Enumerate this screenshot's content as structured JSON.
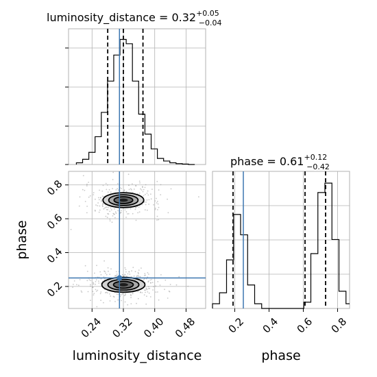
{
  "chart_data": {
    "type": "corner",
    "truth": {
      "luminosity_distance": 0.31,
      "phase": 0.25,
      "color": "#3b76b0"
    },
    "panels": {
      "luminosity_distance_hist": {
        "type": "histogram",
        "title": {
          "prefix": "luminosity_distance = 0.32",
          "upper": "+0.05",
          "lower": "−0.04"
        },
        "xlim": [
          0.18,
          0.53
        ],
        "bin_edges": [
          0.2,
          0.2159,
          0.2318,
          0.2477,
          0.2636,
          0.2795,
          0.2954,
          0.3113,
          0.3272,
          0.3431,
          0.359,
          0.375,
          0.3909,
          0.4068,
          0.4227,
          0.4386,
          0.4545,
          0.4704,
          0.4863,
          0.5022
        ],
        "counts": [
          2,
          6,
          14,
          32,
          60,
          96,
          126,
          144,
          139,
          96,
          58,
          35,
          18,
          7,
          4,
          2,
          1,
          0.5,
          0
        ],
        "quantiles": [
          0.28,
          0.32,
          0.37
        ],
        "grid_x": [
          0.24,
          0.32,
          0.4,
          0.48
        ]
      },
      "phase_vs_luminosity_distance": {
        "type": "scatter-density",
        "xlim": [
          0.18,
          0.53
        ],
        "ylim": [
          0.07,
          0.88
        ],
        "xticks": [
          "0.24",
          "0.32",
          "0.40",
          "0.48"
        ],
        "xtick_values": [
          0.24,
          0.32,
          0.4,
          0.48
        ],
        "yticks": [
          "0.2",
          "0.4",
          "0.6",
          "0.8"
        ],
        "ytick_values": [
          0.2,
          0.4,
          0.6,
          0.8
        ],
        "xlabel": "luminosity_distance",
        "ylabel": "phase",
        "modes": [
          {
            "cx": 0.32,
            "cy": 0.71,
            "rx": 0.052,
            "ry": 0.08
          },
          {
            "cx": 0.32,
            "cy": 0.21,
            "rx": 0.055,
            "ry": 0.08
          }
        ]
      },
      "phase_hist": {
        "type": "histogram",
        "title": {
          "prefix": "phase = 0.61",
          "upper": "+0.12",
          "lower": "−0.42"
        },
        "xlim": [
          0.07,
          0.87
        ],
        "bin_edges": [
          0.07,
          0.111,
          0.152,
          0.193,
          0.234,
          0.275,
          0.316,
          0.357,
          0.398,
          0.439,
          0.48,
          0.521,
          0.562,
          0.603,
          0.644,
          0.685,
          0.726,
          0.767,
          0.808,
          0.849,
          0.87
        ],
        "counts": [
          3,
          10,
          31,
          60,
          47,
          15,
          3,
          0,
          0,
          0,
          0,
          0,
          0,
          4,
          35,
          74,
          80,
          44,
          11,
          3
        ],
        "quantiles": [
          0.19,
          0.61,
          0.73
        ],
        "xticks": [
          "0.2",
          "0.4",
          "0.6",
          "0.8"
        ],
        "xtick_values": [
          0.2,
          0.4,
          0.6,
          0.8
        ],
        "xlabel": "phase"
      }
    }
  }
}
